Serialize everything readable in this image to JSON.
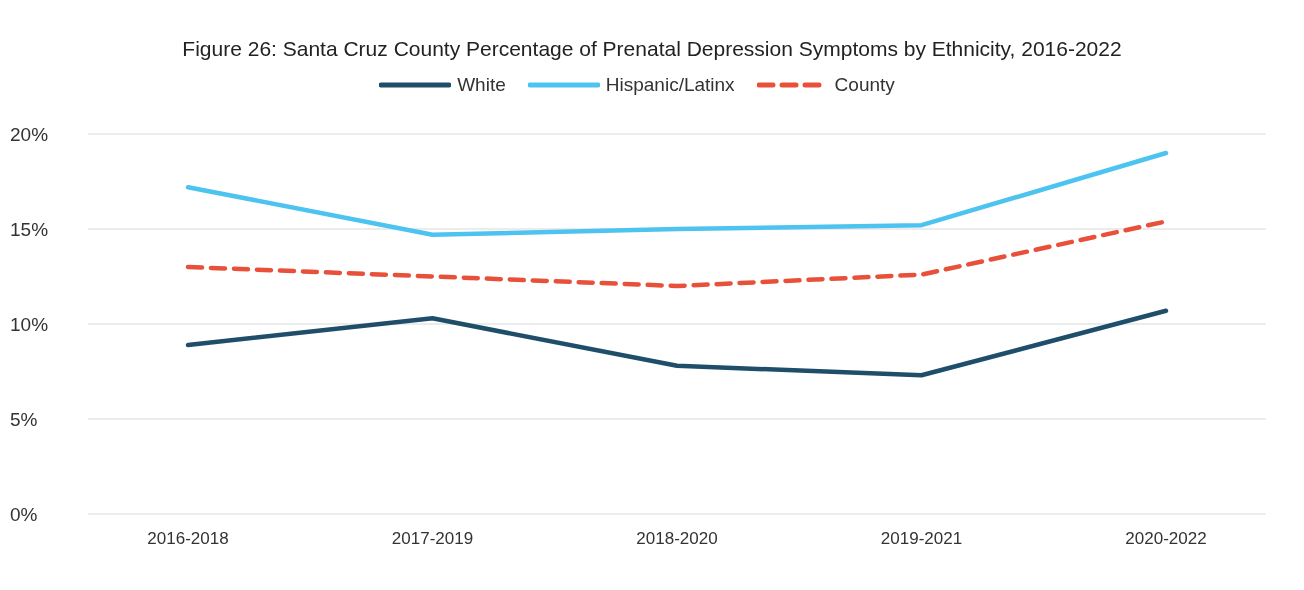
{
  "chart_data": {
    "type": "line",
    "title": "Figure 26: Santa Cruz County Percentage of Prenatal Depression Symptoms by Ethnicity, 2016-2022",
    "categories": [
      "2016-2018",
      "2017-2019",
      "2018-2020",
      "2019-2021",
      "2020-2022"
    ],
    "series": [
      {
        "name": "White",
        "color": "#1f4e6b",
        "values": [
          8.9,
          10.3,
          7.8,
          7.3,
          10.7
        ]
      },
      {
        "name": "Hispanic/Latinx",
        "color": "#4dc3ef",
        "values": [
          17.2,
          14.7,
          15.0,
          15.2,
          19.0
        ]
      },
      {
        "name": "County",
        "color": "#e8503a",
        "values": [
          13.0,
          12.5,
          12.0,
          12.6,
          15.4
        ],
        "line_style": "dashed"
      }
    ],
    "ylim": [
      0,
      20
    ],
    "yticks": [
      {
        "value": 0,
        "label": "0%"
      },
      {
        "value": 5,
        "label": "5%"
      },
      {
        "value": 10,
        "label": "10%"
      },
      {
        "value": 15,
        "label": "15%"
      },
      {
        "value": 20,
        "label": "20%"
      }
    ],
    "grid": "y",
    "legend": "top",
    "marker": "none"
  }
}
